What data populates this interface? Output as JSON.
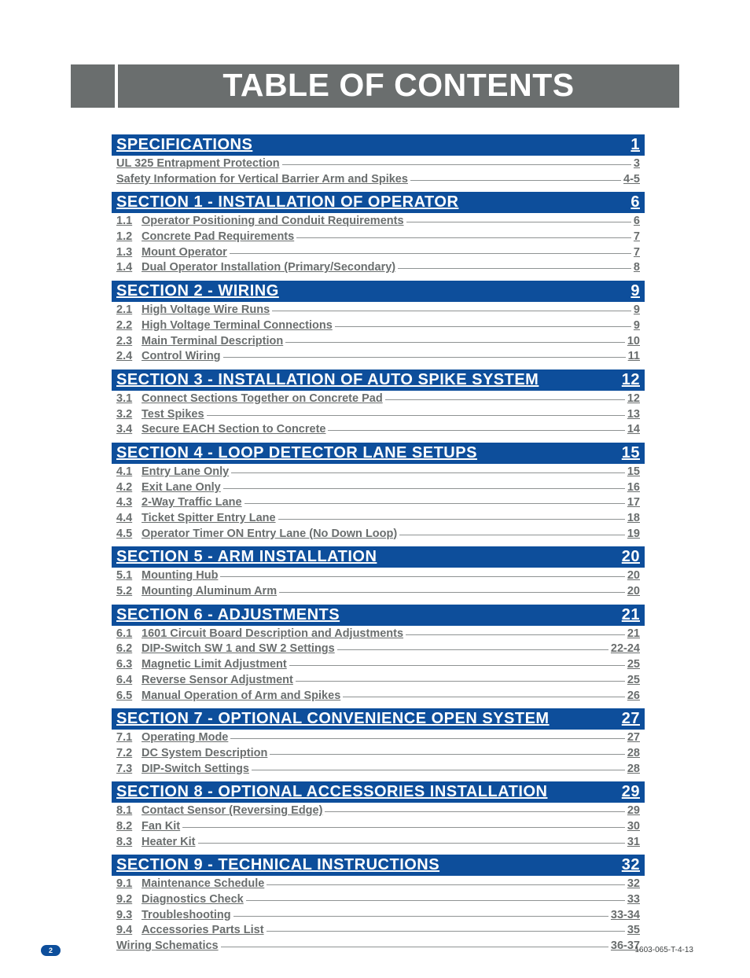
{
  "title": "TABLE OF CONTENTS",
  "colors": {
    "header_bar": "#6a6e6e",
    "section_bg": "#0d4e9b",
    "section_text": "#ffffff",
    "entry_text": "#6a6e6e",
    "leader_line": "#8f9393",
    "page_badge_bg": "#0d4e9b",
    "page_badge_text": "#ffffff",
    "background": "#ffffff"
  },
  "fonts": {
    "title_size": 41,
    "section_size": 20,
    "entry_size": 14.5,
    "footer_size": 10,
    "family": "Arial Narrow / condensed sans",
    "weight": "bold"
  },
  "sections": [
    {
      "title": "SPECIFICATIONS",
      "page": "1",
      "entries": [
        {
          "num": "",
          "label": "UL 325 Entrapment Protection",
          "page": "3"
        },
        {
          "num": "",
          "label": "Safety Information for Vertical Barrier Arm and Spikes",
          "page": "4-5"
        }
      ]
    },
    {
      "title": "SECTION 1 - INSTALLATION OF OPERATOR",
      "page": "6",
      "entries": [
        {
          "num": "1.1",
          "label": "Operator Positioning and Conduit Requirements",
          "page": "6"
        },
        {
          "num": "1.2",
          "label": "Concrete Pad Requirements",
          "page": "7"
        },
        {
          "num": "1.3",
          "label": "Mount Operator",
          "page": "7"
        },
        {
          "num": "1.4",
          "label": "Dual Operator Installation (Primary/Secondary)",
          "page": "8"
        }
      ]
    },
    {
      "title": "SECTION 2 - WIRING",
      "page": "9",
      "entries": [
        {
          "num": "2.1",
          "label": "High Voltage Wire Runs",
          "page": "9"
        },
        {
          "num": "2.2",
          "label": "High Voltage Terminal Connections",
          "page": "9"
        },
        {
          "num": "2.3",
          "label": "Main Terminal Description",
          "page": "10"
        },
        {
          "num": "2.4",
          "label": "Control Wiring",
          "page": "11"
        }
      ]
    },
    {
      "title": "SECTION 3 - INSTALLATION OF AUTO SPIKE SYSTEM",
      "page": "12",
      "entries": [
        {
          "num": "3.1",
          "label": "Connect Sections Together on Concrete Pad",
          "page": "12"
        },
        {
          "num": "3.2",
          "label": "Test Spikes",
          "page": "13"
        },
        {
          "num": "3.4",
          "label": "Secure EACH Section to Concrete",
          "page": "14"
        }
      ]
    },
    {
      "title": "SECTION 4 - LOOP DETECTOR LANE SETUPS",
      "page": "15",
      "entries": [
        {
          "num": "4.1",
          "label": "Entry Lane Only",
          "page": "15"
        },
        {
          "num": "4.2",
          "label": "Exit Lane Only",
          "page": "16"
        },
        {
          "num": "4.3",
          "label": "2-Way Traffic Lane",
          "page": "17"
        },
        {
          "num": "4.4",
          "label": "Ticket Spitter Entry Lane",
          "page": "18"
        },
        {
          "num": "4.5",
          "label": "Operator Timer ON Entry Lane (No Down Loop)",
          "page": "19"
        }
      ]
    },
    {
      "title": "SECTION 5 - ARM INSTALLATION",
      "page": "20",
      "entries": [
        {
          "num": "5.1",
          "label": "Mounting Hub",
          "page": "20"
        },
        {
          "num": "5.2",
          "label": "Mounting Aluminum Arm",
          "page": "20"
        }
      ]
    },
    {
      "title": "SECTION 6 - ADJUSTMENTS",
      "page": "21",
      "entries": [
        {
          "num": "6.1",
          "label": "1601 Circuit Board Description and Adjustments",
          "page": "21"
        },
        {
          "num": "6.2",
          "label": "DIP-Switch SW 1 and SW 2 Settings",
          "page": "22-24"
        },
        {
          "num": "6.3",
          "label": "Magnetic Limit Adjustment",
          "page": "25"
        },
        {
          "num": "6.4",
          "label": "Reverse Sensor Adjustment",
          "page": "25"
        },
        {
          "num": "6.5",
          "label": "Manual Operation of Arm and Spikes",
          "page": "26"
        }
      ]
    },
    {
      "title": "SECTION 7 - OPTIONAL CONVENIENCE OPEN SYSTEM",
      "page": "27",
      "entries": [
        {
          "num": "7.1",
          "label": "Operating Mode",
          "page": "27"
        },
        {
          "num": "7.2",
          "label": "DC System Description",
          "page": "28"
        },
        {
          "num": "7.3",
          "label": "DIP-Switch Settings",
          "page": "28"
        }
      ]
    },
    {
      "title": "SECTION 8 - OPTIONAL ACCESSORIES INSTALLATION",
      "page": "29",
      "entries": [
        {
          "num": "8.1",
          "label": "Contact Sensor (Reversing Edge)",
          "page": "29"
        },
        {
          "num": "8.2",
          "label": "Fan Kit",
          "page": "30"
        },
        {
          "num": "8.3",
          "label": "Heater Kit",
          "page": "31"
        }
      ]
    },
    {
      "title": "SECTION 9 - TECHNICAL INSTRUCTIONS",
      "page": "32",
      "entries": [
        {
          "num": "9.1",
          "label": "Maintenance Schedule",
          "page": "32"
        },
        {
          "num": "9.2",
          "label": "Diagnostics Check",
          "page": "33"
        },
        {
          "num": "9.3",
          "label": "Troubleshooting",
          "page": "33-34"
        },
        {
          "num": "9.4",
          "label": "Accessories Parts List",
          "page": "35"
        },
        {
          "num": "",
          "label": "Wiring Schematics",
          "page": "36-37"
        }
      ]
    }
  ],
  "footer": {
    "page_number": "2",
    "doc_id": "1603-065-T-4-13"
  }
}
